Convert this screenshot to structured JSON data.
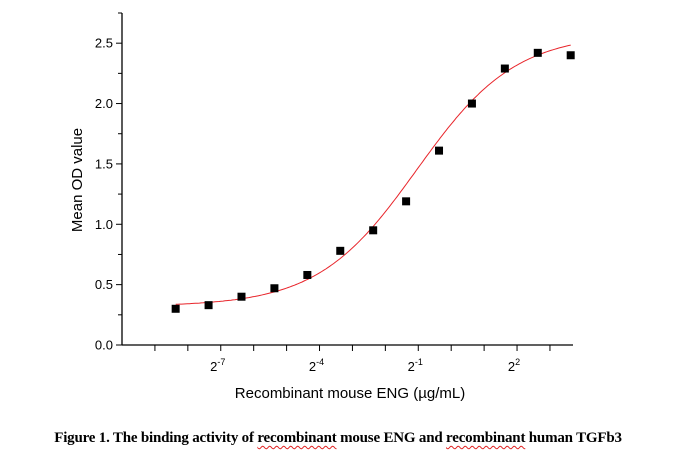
{
  "chart_data": {
    "type": "scatter",
    "title": "",
    "xlabel": "Recombinant mouse ENG (µg/mL)",
    "ylabel": "Mean OD value",
    "x_scale": "log2",
    "xlim_log2": [
      -10,
      3.7
    ],
    "ylim": [
      0,
      2.75
    ],
    "x_ticks_log2": [
      -9,
      -8,
      -7,
      -6,
      -5,
      -4,
      -3,
      -2,
      -1,
      0,
      1,
      2,
      3
    ],
    "x_tick_labels": [
      {
        "exp": -7,
        "base": "2",
        "sup": "-7"
      },
      {
        "exp": -4,
        "base": "2",
        "sup": "-4"
      },
      {
        "exp": -1,
        "base": "2",
        "sup": "-1"
      },
      {
        "exp": 2,
        "base": "2",
        "sup": "2"
      }
    ],
    "y_major_ticks": [
      "0.0",
      "0.5",
      "1.0",
      "1.5",
      "2.0",
      "2.5"
    ],
    "y_minor_step": 0.25,
    "series": [
      {
        "name": "Mean OD",
        "x_log2": [
          -8.37,
          -7.37,
          -6.37,
          -5.37,
          -4.37,
          -3.37,
          -2.37,
          -1.37,
          -0.37,
          0.63,
          1.63,
          2.63,
          3.63
        ],
        "y": [
          0.3,
          0.33,
          0.4,
          0.47,
          0.58,
          0.78,
          0.95,
          1.19,
          1.61,
          2.0,
          2.29,
          2.42,
          2.4
        ],
        "marker": "square",
        "color": "#000000"
      }
    ],
    "fit": {
      "model": "logistic",
      "bottom": 0.32,
      "top": 2.58,
      "x0_log2": -1.05,
      "width_log2": 1.5,
      "color": "#e8242a"
    },
    "grid": false,
    "legend": "none"
  },
  "caption": {
    "parts": [
      "Figure 1. The binding activity of ",
      "recombinant",
      " mouse ENG and ",
      "recombinant",
      " human TGFb3"
    ]
  }
}
